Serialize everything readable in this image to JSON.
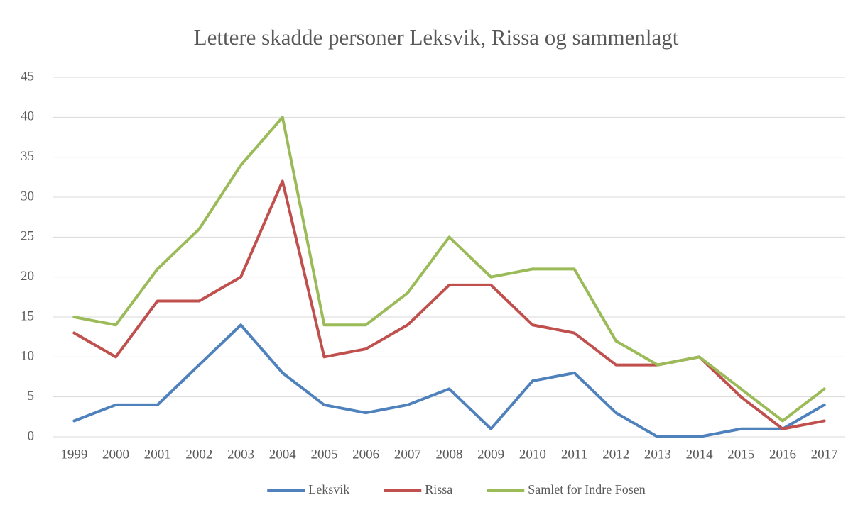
{
  "chart_data": {
    "type": "line",
    "title": "Lettere skadde personer Leksvik, Rissa og sammenlagt",
    "categories": [
      "1999",
      "2000",
      "2001",
      "2002",
      "2003",
      "2004",
      "2005",
      "2006",
      "2007",
      "2008",
      "2009",
      "2010",
      "2011",
      "2012",
      "2013",
      "2014",
      "2015",
      "2016",
      "2017"
    ],
    "series": [
      {
        "name": "Leksvik",
        "color": "#4f81bd",
        "values": [
          2,
          4,
          4,
          9,
          14,
          8,
          4,
          3,
          4,
          6,
          1,
          7,
          8,
          3,
          0,
          0,
          1,
          1,
          4
        ]
      },
      {
        "name": "Rissa",
        "color": "#c0504d",
        "values": [
          13,
          10,
          17,
          17,
          20,
          32,
          10,
          11,
          14,
          19,
          19,
          14,
          13,
          9,
          9,
          10,
          5,
          1,
          2
        ]
      },
      {
        "name": "Samlet for Indre Fosen",
        "color": "#9bbb59",
        "values": [
          15,
          14,
          21,
          26,
          34,
          40,
          14,
          14,
          18,
          25,
          20,
          21,
          21,
          12,
          9,
          10,
          6,
          2,
          6
        ]
      }
    ],
    "ylim": [
      0,
      45
    ],
    "yticks": [
      0,
      5,
      10,
      15,
      20,
      25,
      30,
      35,
      40,
      45
    ],
    "grid": true,
    "legend": "bottom"
  }
}
